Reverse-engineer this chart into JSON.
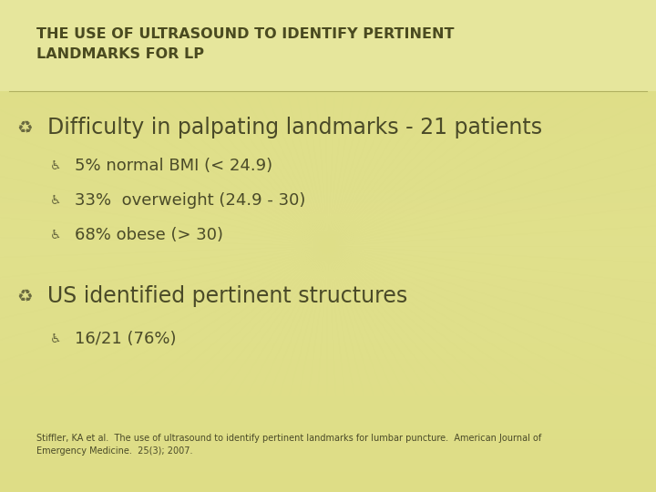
{
  "title_line1": "THE USE OF ULTRASOUND TO IDENTIFY PERTINENT",
  "title_line2": "LANDMARKS FOR LP",
  "title_color": "#4a4a20",
  "title_fontsize": 11.5,
  "bg_color": "#d8d878",
  "bg_color_center": "#e8e89a",
  "bullet1_text": "Difficulty in palpating landmarks - 21 patients",
  "bullet1_fontsize": 17,
  "sub_bullets": [
    "5% normal BMI (< 24.9)",
    "33%  overweight (24.9 - 30)",
    "68% obese (> 30)"
  ],
  "sub_bullet_fontsize": 13,
  "bullet2_text": "US identified pertinent structures",
  "bullet2_fontsize": 17,
  "sub_bullets2": [
    "16/21 (76%)"
  ],
  "sub_bullet2_fontsize": 13,
  "text_color": "#4a4a28",
  "footnote": "Stiffler, KA et al.  The use of ultrasound to identify pertinent landmarks for lumbar puncture.  American Journal of\nEmergency Medicine.  25(3); 2007.",
  "footnote_fontsize": 7.0,
  "divider_color": "#b0b060",
  "title_bg_color": "#e8e8aa",
  "streak_color": "#e0e080",
  "bullet_symbol": "⚀",
  "sub_bullet_symbol": "⚀"
}
